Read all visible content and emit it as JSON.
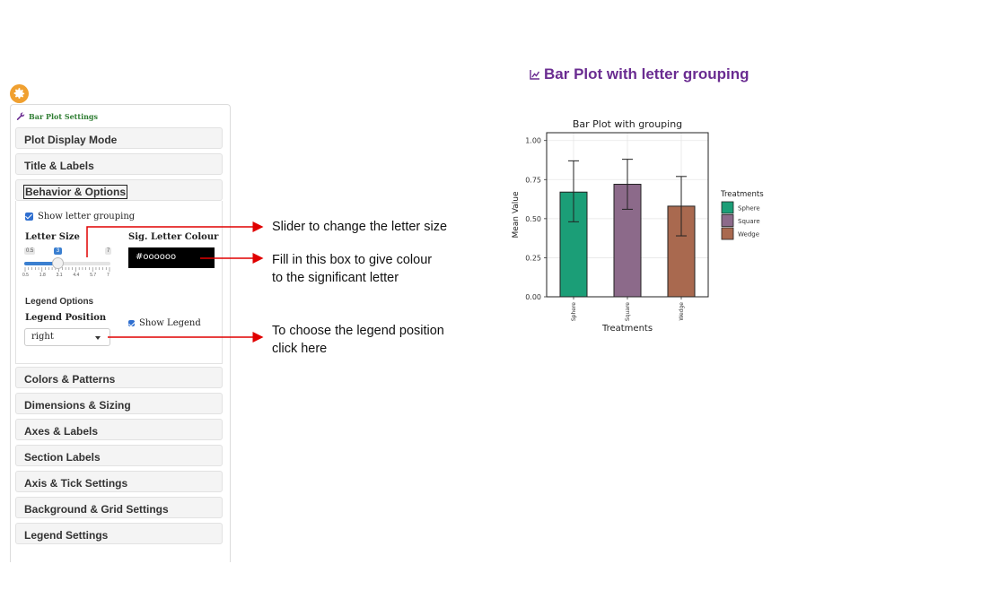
{
  "panel": {
    "title": "Bar Plot Settings",
    "sections": [
      {
        "label": "Plot Display Mode"
      },
      {
        "label": "Title & Labels"
      },
      {
        "label": "Behavior & Options"
      },
      {
        "label": "Colors & Patterns"
      },
      {
        "label": "Dimensions & Sizing"
      },
      {
        "label": "Axes & Labels"
      },
      {
        "label": "Section Labels"
      },
      {
        "label": "Axis & Tick Settings"
      },
      {
        "label": "Background & Grid Settings"
      },
      {
        "label": "Legend Settings"
      }
    ],
    "behavior": {
      "show_letter_grouping": "Show letter grouping",
      "letter_size_label": "Letter Size",
      "slider": {
        "min": "0.5",
        "max": "7",
        "value": "3",
        "value_num": 3,
        "min_num": 0.5,
        "max_num": 7,
        "tick_labels": [
          "0.5",
          "1.8",
          "3.1",
          "4.4",
          "5.7",
          "7"
        ]
      },
      "sig_letter_colour_label": "Sig. Letter Colour",
      "sig_letter_colour_value": "#oooooo",
      "legend_options_label": "Legend Options",
      "legend_position_label": "Legend Position",
      "legend_position_value": "right",
      "show_legend": "Show Legend"
    }
  },
  "annotations": {
    "slider_note": "Slider to change the letter size",
    "colour_note_line1": "Fill in this box to give colour",
    "colour_note_line2": "to the significant letter",
    "legend_note_line1": "To choose the legend position",
    "legend_note_line2": "click here"
  },
  "plot_heading": "Bar Plot with letter grouping",
  "chart_data": {
    "type": "bar",
    "title": "Bar Plot with grouping",
    "xlabel": "Treatments",
    "ylabel": "Mean Value",
    "categories": [
      "Sphere",
      "Square",
      "Wedge"
    ],
    "values": [
      0.67,
      0.72,
      0.58
    ],
    "error_low": [
      0.48,
      0.56,
      0.39
    ],
    "error_high": [
      0.87,
      0.88,
      0.77
    ],
    "ylim": [
      0,
      1.05
    ],
    "yticks": [
      "0.00",
      "0.25",
      "0.50",
      "0.75",
      "1.00"
    ],
    "colors": [
      "#1b9e77",
      "#8c6a8a",
      "#a9694f"
    ],
    "legend": {
      "title": "Treatments",
      "entries": [
        "Sphere",
        "Square",
        "Wedge"
      ],
      "position": "right"
    },
    "grid": true
  },
  "colors": {
    "accent": "#6a2c91",
    "panel_title": "#2e7d32",
    "arrow": "#e00000",
    "gear": "#f0a030"
  }
}
